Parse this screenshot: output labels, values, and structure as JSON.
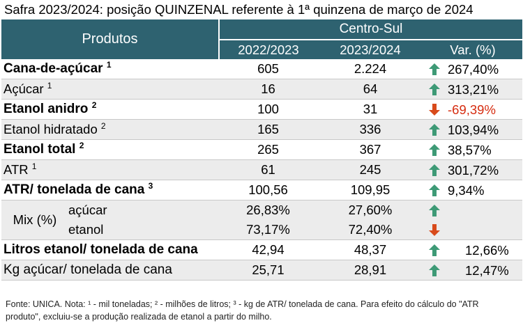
{
  "title": "Safra 2023/2024: posição QUINZENAL referente à 1ª quinzena de março de 2024",
  "header": {
    "products": "Produtos",
    "group": "Centro-Sul",
    "col1": "2022/2023",
    "col2": "2023/2024",
    "col3": "Var. (%)"
  },
  "rows": [
    {
      "label": "Cana-de-açúcar",
      "sup": "1",
      "v1": "605",
      "v2": "2.224",
      "var": "267,40%",
      "dir": "up"
    },
    {
      "label": "Açúcar",
      "sup": "1",
      "v1": "16",
      "v2": "64",
      "var": "313,21%",
      "dir": "up"
    },
    {
      "label": "Etanol anidro",
      "sup": "2",
      "v1": "100",
      "v2": "31",
      "var": "-69,39%",
      "dir": "down"
    },
    {
      "label": "Etanol hidratado",
      "sup": "2",
      "v1": "165",
      "v2": "336",
      "var": "103,94%",
      "dir": "up"
    },
    {
      "label": "Etanol total",
      "sup": "2",
      "v1": "265",
      "v2": "367",
      "var": "38,57%",
      "dir": "up"
    },
    {
      "label": "ATR",
      "sup": "1",
      "v1": "61",
      "v2": "245",
      "var": "301,72%",
      "dir": "up"
    },
    {
      "label": "ATR/ tonelada de cana",
      "sup": "3",
      "v1": "100,56",
      "v2": "109,95",
      "var": "9,34%",
      "dir": "up"
    }
  ],
  "mix": {
    "label": "Mix (%)",
    "acucar": {
      "label": "açúcar",
      "v1": "26,83%",
      "v2": "27,60%",
      "dir": "up"
    },
    "etanol": {
      "label": "etanol",
      "v1": "73,17%",
      "v2": "72,40%",
      "dir": "down"
    }
  },
  "tail": [
    {
      "label": "Litros etanol/ tonelada de cana",
      "v1": "42,94",
      "v2": "48,37",
      "var": "12,66%",
      "dir": "up"
    },
    {
      "label": "Kg açúcar/ tonelada de cana",
      "v1": "25,71",
      "v2": "28,91",
      "var": "12,47%",
      "dir": "up"
    }
  ],
  "footnote": "Fonte: UNICA. Nota: ¹ - mil toneladas; ² - milhões de litros; ³ - kg de ATR/ tonelada de cana. Para efeito do cálculo do \"ATR produto\", excluiu-se a produção realizada de etanol a partir do milho.",
  "colors": {
    "header": "#2e6270",
    "up": "#3e9a76",
    "down": "#d84a1b",
    "negative_text": "#d62c10"
  }
}
